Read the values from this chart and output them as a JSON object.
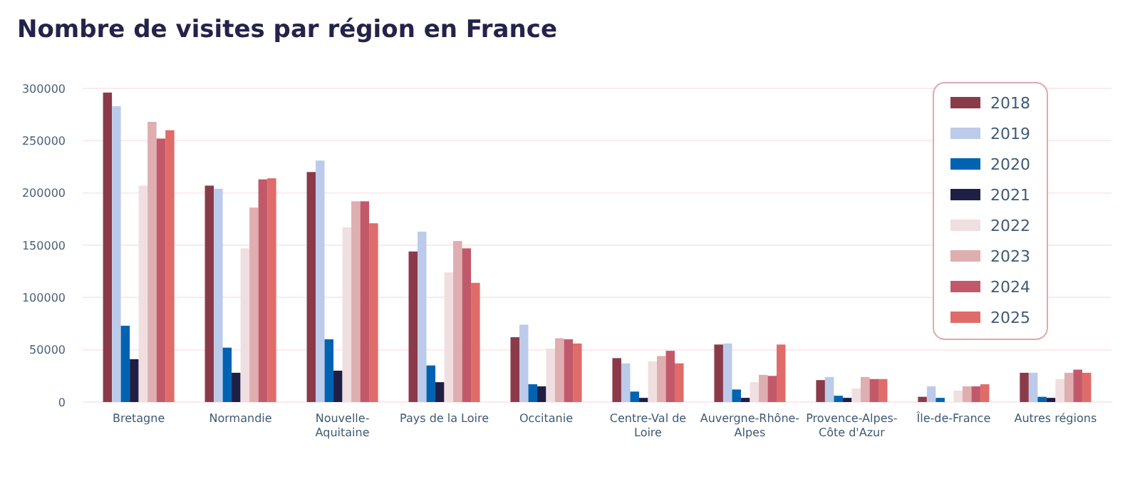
{
  "chart_data": {
    "type": "bar",
    "title": "Nombre de visites par région en France",
    "categories": [
      "Bretagne",
      "Normandie",
      "Nouvelle-Aquitaine",
      "Pays de la Loire",
      "Occitanie",
      "Centre-Val de Loire",
      "Auvergne-Rhône-Alpes",
      "Provence-Alpes-Côte d'Azur",
      "Île-de-France",
      "Autres régions"
    ],
    "series": [
      {
        "name": "2018",
        "color": "#8b3a4a",
        "values": [
          296000,
          207000,
          220000,
          144000,
          62000,
          42000,
          55000,
          21000,
          5000,
          28000
        ]
      },
      {
        "name": "2019",
        "color": "#bccbea",
        "values": [
          283000,
          204000,
          231000,
          163000,
          74000,
          37000,
          56000,
          24000,
          15000,
          28000
        ]
      },
      {
        "name": "2020",
        "color": "#0063b1",
        "values": [
          73000,
          52000,
          60000,
          35000,
          17000,
          10000,
          12000,
          6000,
          4000,
          5000
        ]
      },
      {
        "name": "2021",
        "color": "#1f1f45",
        "values": [
          41000,
          28000,
          30000,
          19000,
          15000,
          4000,
          4000,
          4000,
          0,
          4000
        ]
      },
      {
        "name": "2022",
        "color": "#f0dfe0",
        "values": [
          207000,
          147000,
          167000,
          124000,
          51000,
          39000,
          19000,
          13000,
          11000,
          22000
        ]
      },
      {
        "name": "2023",
        "color": "#dfaeb0",
        "values": [
          268000,
          186000,
          192000,
          154000,
          61000,
          44000,
          26000,
          24000,
          15000,
          28000
        ]
      },
      {
        "name": "2024",
        "color": "#c2596a",
        "values": [
          252000,
          213000,
          192000,
          147000,
          60000,
          49000,
          25000,
          22000,
          15000,
          31000
        ]
      },
      {
        "name": "2025",
        "color": "#e06c6a",
        "values": [
          260000,
          214000,
          171000,
          114000,
          56000,
          37000,
          55000,
          22000,
          17000,
          28000
        ]
      }
    ],
    "ylim": [
      0,
      300000
    ],
    "yticks": [
      0,
      50000,
      100000,
      150000,
      200000,
      250000,
      300000
    ],
    "grid": "y",
    "legend": "top right"
  }
}
